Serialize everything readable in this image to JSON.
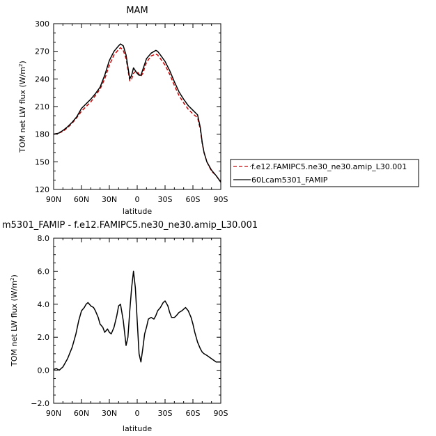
{
  "chart_data": [
    {
      "type": "line",
      "title": "MAM",
      "xlabel": "latitude",
      "ylabel": "TOM net LW flux (W/m",
      "ylabel_sup": "2",
      "ylabel_close": ")",
      "xlim": [
        90,
        -90
      ],
      "ylim": [
        120,
        300
      ],
      "x_ticks": [
        90,
        60,
        30,
        0,
        -30,
        -60,
        -90
      ],
      "x_tick_labels": [
        "90N",
        "60N",
        "30N",
        "0",
        "30S",
        "60S",
        "90S"
      ],
      "y_ticks": [
        120,
        150,
        180,
        210,
        240,
        270,
        300
      ],
      "y_tick_labels": [
        "120",
        "150",
        "180",
        "210",
        "240",
        "270",
        "300"
      ],
      "legend_position": "right",
      "series": [
        {
          "name": "f.e12.FAMIPC5.ne30_ne30.amip_L30.001",
          "color": "#cc0000",
          "dash": "dashed",
          "x": [
            90,
            85,
            80,
            75,
            70,
            65,
            60,
            55,
            50,
            45,
            40,
            35,
            30,
            25,
            20,
            18,
            15,
            12,
            10,
            8,
            6,
            4,
            2,
            0,
            -2,
            -4,
            -6,
            -8,
            -10,
            -15,
            -20,
            -22,
            -25,
            -30,
            -35,
            -40,
            -45,
            -50,
            -55,
            -60,
            -65,
            -68,
            -70,
            -72,
            -75,
            -80,
            -85,
            -90
          ],
          "y": [
            180,
            181,
            183,
            187,
            192,
            198,
            205,
            210,
            215,
            222,
            229,
            240,
            255,
            266,
            272,
            274,
            271,
            262,
            250,
            238,
            240,
            246,
            248,
            248,
            245,
            243,
            246,
            252,
            258,
            265,
            267,
            266,
            262,
            255,
            245,
            233,
            222,
            214,
            207,
            202,
            198,
            185,
            170,
            160,
            150,
            140,
            135,
            128
          ]
        },
        {
          "name": "60Lcam5301_FAMIP",
          "color": "#000000",
          "dash": "solid",
          "x": [
            90,
            85,
            80,
            75,
            70,
            65,
            60,
            55,
            50,
            45,
            40,
            35,
            30,
            25,
            20,
            18,
            15,
            12,
            10,
            8,
            6,
            4,
            2,
            0,
            -2,
            -4,
            -6,
            -8,
            -10,
            -15,
            -20,
            -22,
            -25,
            -30,
            -35,
            -40,
            -45,
            -50,
            -55,
            -60,
            -65,
            -68,
            -70,
            -72,
            -75,
            -80,
            -85,
            -90
          ],
          "y": [
            180,
            181,
            184,
            188,
            193,
            199,
            208,
            213,
            218,
            224,
            231,
            244,
            260,
            270,
            276,
            278,
            276,
            266,
            253,
            240,
            244,
            252,
            249,
            246,
            244,
            244,
            250,
            256,
            262,
            268,
            271,
            270,
            266,
            259,
            249,
            237,
            226,
            218,
            211,
            206,
            201,
            187,
            171,
            160,
            150,
            141,
            135,
            128
          ]
        }
      ]
    },
    {
      "type": "line",
      "title": "m5301_FAMIP - f.e12.FAMIPC5.ne30_ne30.amip_L30.001",
      "xlabel": "latitude",
      "ylabel": "TOM net LW flux (W/m",
      "ylabel_sup": "2",
      "ylabel_close": ")",
      "xlim": [
        90,
        -90
      ],
      "ylim": [
        -2.0,
        8.0
      ],
      "x_ticks": [
        90,
        60,
        30,
        0,
        -30,
        -60,
        -90
      ],
      "x_tick_labels": [
        "90N",
        "60N",
        "30N",
        "0",
        "30S",
        "60S",
        "90S"
      ],
      "y_ticks": [
        -2.0,
        0.0,
        2.0,
        4.0,
        6.0,
        8.0
      ],
      "y_tick_labels": [
        "−2.0",
        "0.0",
        "2.0",
        "4.0",
        "6.0",
        "8.0"
      ],
      "series": [
        {
          "color": "#000000",
          "dash": "solid",
          "x": [
            90,
            87,
            84,
            80,
            75,
            70,
            66,
            63,
            60,
            57,
            55,
            53,
            50,
            47,
            45,
            42,
            40,
            37,
            35,
            32,
            30,
            28,
            25,
            22,
            20,
            18,
            15,
            12,
            10,
            8,
            6,
            4,
            2,
            0,
            -2,
            -4,
            -6,
            -8,
            -10,
            -12,
            -15,
            -18,
            -20,
            -22,
            -25,
            -28,
            -30,
            -33,
            -35,
            -37,
            -40,
            -42,
            -45,
            -48,
            -50,
            -52,
            -55,
            -58,
            -60,
            -62,
            -65,
            -68,
            -70,
            -72,
            -75,
            -80,
            -85,
            -88,
            -90
          ],
          "y": [
            0.05,
            0.1,
            0.0,
            0.2,
            0.7,
            1.4,
            2.2,
            3.0,
            3.6,
            3.8,
            4.0,
            4.1,
            3.9,
            3.8,
            3.6,
            3.2,
            2.8,
            2.6,
            2.3,
            2.5,
            2.3,
            2.2,
            2.6,
            3.3,
            3.9,
            4.0,
            3.0,
            1.5,
            2.0,
            3.6,
            5.0,
            6.0,
            5.0,
            3.0,
            1.0,
            0.5,
            1.3,
            2.2,
            2.6,
            3.1,
            3.2,
            3.1,
            3.3,
            3.6,
            3.8,
            4.1,
            4.2,
            3.9,
            3.5,
            3.2,
            3.2,
            3.3,
            3.5,
            3.6,
            3.7,
            3.8,
            3.6,
            3.2,
            2.8,
            2.3,
            1.7,
            1.3,
            1.1,
            1.0,
            0.9,
            0.7,
            0.5,
            0.5,
            0.5
          ]
        }
      ]
    }
  ]
}
